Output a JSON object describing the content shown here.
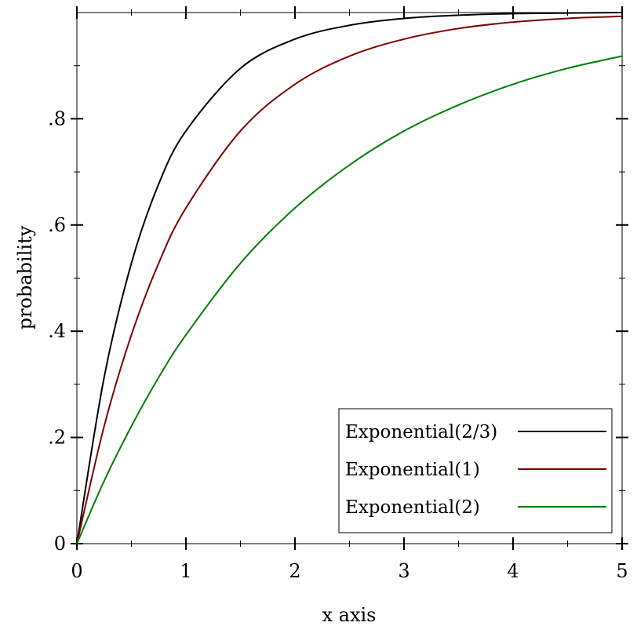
{
  "chart_data": {
    "type": "line",
    "xlabel": "x axis",
    "ylabel": "probability",
    "xlim": [
      0,
      5
    ],
    "ylim": [
      0,
      1
    ],
    "x_ticks": [
      {
        "value": 0,
        "label": "0"
      },
      {
        "value": 1,
        "label": "1"
      },
      {
        "value": 2,
        "label": "2"
      },
      {
        "value": 3,
        "label": "3"
      },
      {
        "value": 4,
        "label": "4"
      },
      {
        "value": 5,
        "label": "5"
      }
    ],
    "y_ticks": [
      {
        "value": 0,
        "label": "0"
      },
      {
        "value": 0.2,
        "label": ".2"
      },
      {
        "value": 0.4,
        "label": ".4"
      },
      {
        "value": 0.6,
        "label": ".6"
      },
      {
        "value": 0.8,
        "label": ".8"
      }
    ],
    "grid": false,
    "legend_position": "bottom-right",
    "series": [
      {
        "name": "Exponential(2/3)",
        "color": "#000000",
        "x": [
          0,
          0.25,
          0.5,
          0.75,
          1,
          1.5,
          2,
          2.5,
          3,
          3.5,
          4,
          4.5,
          5
        ],
        "values": [
          0,
          0.313,
          0.528,
          0.677,
          0.777,
          0.895,
          0.95,
          0.976,
          0.989,
          0.995,
          0.998,
          0.999,
          1.0
        ]
      },
      {
        "name": "Exponential(1)",
        "color": "#7f0000",
        "x": [
          0,
          0.25,
          0.5,
          0.75,
          1,
          1.5,
          2,
          2.5,
          3,
          3.5,
          4,
          4.5,
          5
        ],
        "values": [
          0,
          0.221,
          0.393,
          0.528,
          0.632,
          0.777,
          0.865,
          0.918,
          0.95,
          0.97,
          0.982,
          0.989,
          0.993
        ]
      },
      {
        "name": "Exponential(2)",
        "color": "#008000",
        "x": [
          0,
          0.25,
          0.5,
          0.75,
          1,
          1.5,
          2,
          2.5,
          3,
          3.5,
          4,
          4.5,
          5
        ],
        "values": [
          0,
          0.118,
          0.221,
          0.313,
          0.393,
          0.528,
          0.632,
          0.713,
          0.777,
          0.826,
          0.865,
          0.895,
          0.918
        ]
      }
    ]
  }
}
